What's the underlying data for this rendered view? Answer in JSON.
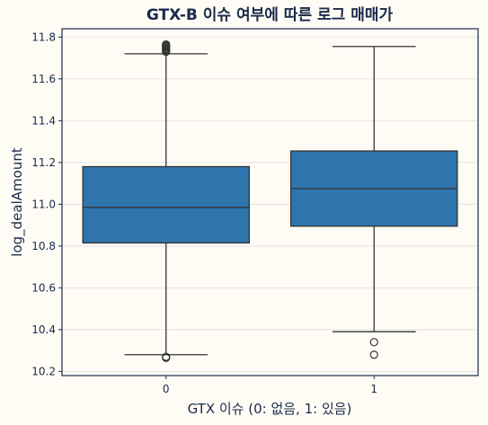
{
  "chart_data": {
    "type": "box",
    "title": "GTX-B 이슈 여부에 따른 로그 매매가",
    "xlabel": "GTX 이슈 (0: 없음, 1: 있음)",
    "ylabel": "log_dealAmount",
    "categories": [
      "0",
      "1"
    ],
    "ylim": [
      10.18,
      11.84
    ],
    "yticks": [
      "10.2",
      "10.4",
      "10.6",
      "10.8",
      "11.0",
      "11.2",
      "11.4",
      "11.6",
      "11.8"
    ],
    "grid": true,
    "boxes": [
      {
        "category": "0",
        "whisker_low": 10.28,
        "q1": 10.815,
        "median": 10.985,
        "q3": 11.18,
        "whisker_high": 11.72,
        "outliers": [
          10.265,
          10.27,
          11.73,
          11.735,
          11.74,
          11.745,
          11.75,
          11.755,
          11.76,
          11.765
        ]
      },
      {
        "category": "1",
        "whisker_low": 10.39,
        "q1": 10.895,
        "median": 11.075,
        "q3": 11.255,
        "whisker_high": 11.755,
        "outliers": [
          10.28,
          10.34
        ]
      }
    ],
    "colors": {
      "box_fill": "#2e75ae",
      "line": "#333333",
      "grid": "#e3e3e3",
      "frame": "#1a2a4a",
      "background": "#fffcf5"
    }
  }
}
